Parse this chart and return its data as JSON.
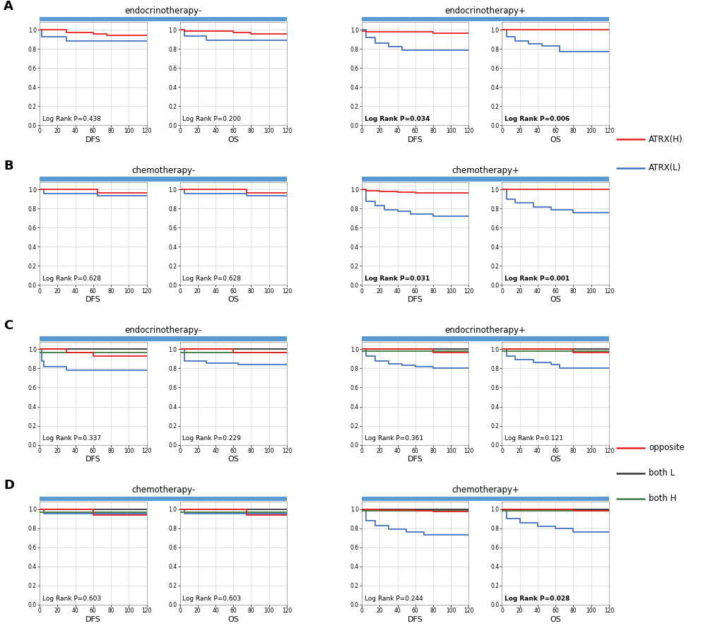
{
  "panels": {
    "A": {
      "left_title": "endocrinotherapy-",
      "right_title": "endocrinotherapy+",
      "legend_type": "AB",
      "plots": [
        {
          "label": "DFS",
          "p_value": "0.438",
          "bold": false,
          "red": {
            "x": [
              0,
              30,
              30,
              60,
              60,
              75,
              75,
              100,
              100,
              120
            ],
            "y": [
              1.0,
              1.0,
              0.97,
              0.97,
              0.955,
              0.955,
              0.94,
              0.94,
              0.94,
              0.94
            ]
          },
          "blue": {
            "x": [
              0,
              2,
              2,
              30,
              30,
              120
            ],
            "y": [
              1.0,
              1.0,
              0.93,
              0.93,
              0.885,
              0.885
            ]
          }
        },
        {
          "label": "OS",
          "p_value": "0.200",
          "bold": false,
          "red": {
            "x": [
              0,
              5,
              5,
              60,
              60,
              80,
              80,
              100,
              120
            ],
            "y": [
              1.0,
              1.0,
              0.985,
              0.985,
              0.97,
              0.97,
              0.96,
              0.96,
              0.96
            ]
          },
          "blue": {
            "x": [
              0,
              5,
              5,
              30,
              30,
              120
            ],
            "y": [
              1.0,
              1.0,
              0.935,
              0.935,
              0.89,
              0.89
            ]
          }
        },
        {
          "label": "DFS",
          "p_value": "0.034",
          "bold": true,
          "red": {
            "x": [
              0,
              5,
              5,
              80,
              80,
              100,
              120
            ],
            "y": [
              0.985,
              0.985,
              0.98,
              0.98,
              0.965,
              0.965,
              0.965
            ]
          },
          "blue": {
            "x": [
              0,
              5,
              5,
              15,
              15,
              30,
              30,
              45,
              45,
              60,
              60,
              80,
              80,
              100,
              120
            ],
            "y": [
              1.0,
              1.0,
              0.92,
              0.92,
              0.86,
              0.86,
              0.82,
              0.82,
              0.79,
              0.79,
              0.79,
              0.79,
              0.79,
              0.79,
              0.79
            ]
          }
        },
        {
          "label": "OS",
          "p_value": "0.006",
          "bold": true,
          "red": {
            "x": [
              0,
              100,
              120
            ],
            "y": [
              1.0,
              1.0,
              1.0
            ]
          },
          "blue": {
            "x": [
              0,
              5,
              5,
              15,
              15,
              30,
              30,
              45,
              45,
              65,
              65,
              100,
              120
            ],
            "y": [
              1.0,
              1.0,
              0.93,
              0.93,
              0.88,
              0.88,
              0.855,
              0.855,
              0.83,
              0.83,
              0.775,
              0.775,
              0.775
            ]
          }
        }
      ]
    },
    "B": {
      "left_title": "chemotherapy-",
      "right_title": "chemotherapy+",
      "legend_type": "AB",
      "plots": [
        {
          "label": "DFS",
          "p_value": "0.628",
          "bold": false,
          "red": {
            "x": [
              0,
              65,
              65,
              100,
              120
            ],
            "y": [
              1.0,
              1.0,
              0.965,
              0.965,
              0.965
            ]
          },
          "blue": {
            "x": [
              0,
              5,
              5,
              65,
              65,
              100,
              120
            ],
            "y": [
              1.0,
              1.0,
              0.96,
              0.96,
              0.935,
              0.935,
              0.935
            ]
          }
        },
        {
          "label": "OS",
          "p_value": "0.628",
          "bold": false,
          "red": {
            "x": [
              0,
              75,
              75,
              100,
              120
            ],
            "y": [
              1.0,
              1.0,
              0.965,
              0.965,
              0.965
            ]
          },
          "blue": {
            "x": [
              0,
              5,
              5,
              75,
              75,
              100,
              120
            ],
            "y": [
              1.0,
              1.0,
              0.96,
              0.96,
              0.935,
              0.935,
              0.935
            ]
          }
        },
        {
          "label": "DFS",
          "p_value": "0.031",
          "bold": true,
          "red": {
            "x": [
              0,
              5,
              5,
              20,
              20,
              40,
              40,
              60,
              60,
              100,
              120
            ],
            "y": [
              1.0,
              1.0,
              0.99,
              0.99,
              0.98,
              0.98,
              0.975,
              0.975,
              0.965,
              0.965,
              0.965
            ]
          },
          "blue": {
            "x": [
              0,
              5,
              5,
              15,
              15,
              25,
              25,
              40,
              40,
              55,
              55,
              80,
              80,
              100,
              120
            ],
            "y": [
              1.0,
              1.0,
              0.88,
              0.88,
              0.83,
              0.83,
              0.79,
              0.79,
              0.77,
              0.77,
              0.74,
              0.74,
              0.72,
              0.72,
              0.72
            ]
          }
        },
        {
          "label": "OS",
          "p_value": "0.001",
          "bold": true,
          "red": {
            "x": [
              0,
              100,
              120
            ],
            "y": [
              1.0,
              1.0,
              1.0
            ]
          },
          "blue": {
            "x": [
              0,
              5,
              5,
              15,
              15,
              35,
              35,
              55,
              55,
              80,
              80,
              100,
              120
            ],
            "y": [
              1.0,
              1.0,
              0.9,
              0.9,
              0.86,
              0.86,
              0.82,
              0.82,
              0.79,
              0.79,
              0.76,
              0.76,
              0.76
            ]
          }
        }
      ]
    },
    "C": {
      "left_title": "endocrinotherapy-",
      "right_title": "endocrinotherapy+",
      "legend_type": "CD",
      "plots": [
        {
          "label": "DFS",
          "p_value": "0.337",
          "bold": false,
          "red": {
            "x": [
              0,
              30,
              30,
              60,
              60,
              100,
              120
            ],
            "y": [
              1.0,
              1.0,
              0.97,
              0.97,
              0.93,
              0.93,
              0.93
            ]
          },
          "dark": {
            "x": [
              0,
              120
            ],
            "y": [
              1.0,
              1.0
            ]
          },
          "green": {
            "x": [
              0,
              120
            ],
            "y": [
              0.97,
              0.97
            ]
          },
          "blue": {
            "x": [
              0,
              2,
              2,
              5,
              5,
              30,
              30,
              100,
              120
            ],
            "y": [
              1.0,
              1.0,
              0.88,
              0.88,
              0.82,
              0.82,
              0.78,
              0.78,
              0.78
            ]
          }
        },
        {
          "label": "OS",
          "p_value": "0.229",
          "bold": false,
          "red": {
            "x": [
              0,
              60,
              60,
              100,
              120
            ],
            "y": [
              1.0,
              1.0,
              0.97,
              0.97,
              0.97
            ]
          },
          "dark": {
            "x": [
              0,
              120
            ],
            "y": [
              1.0,
              1.0
            ]
          },
          "green": {
            "x": [
              0,
              120
            ],
            "y": [
              0.97,
              0.97
            ]
          },
          "blue": {
            "x": [
              0,
              5,
              5,
              30,
              30,
              65,
              65,
              100,
              120
            ],
            "y": [
              1.0,
              1.0,
              0.88,
              0.88,
              0.855,
              0.855,
              0.84,
              0.84,
              0.84
            ]
          }
        },
        {
          "label": "DFS",
          "p_value": "0.361",
          "bold": false,
          "red": {
            "x": [
              0,
              80,
              80,
              100,
              120
            ],
            "y": [
              1.0,
              1.0,
              0.97,
              0.97,
              0.97
            ]
          },
          "dark": {
            "x": [
              0,
              120
            ],
            "y": [
              1.0,
              1.0
            ]
          },
          "green": {
            "x": [
              0,
              120
            ],
            "y": [
              0.98,
              0.98
            ]
          },
          "blue": {
            "x": [
              0,
              5,
              5,
              15,
              15,
              30,
              30,
              45,
              45,
              60,
              60,
              80,
              80,
              100,
              120
            ],
            "y": [
              1.0,
              1.0,
              0.93,
              0.93,
              0.88,
              0.88,
              0.85,
              0.85,
              0.83,
              0.83,
              0.82,
              0.82,
              0.8,
              0.8,
              0.8
            ]
          }
        },
        {
          "label": "OS",
          "p_value": "0.121",
          "bold": false,
          "red": {
            "x": [
              0,
              80,
              80,
              100,
              120
            ],
            "y": [
              1.0,
              1.0,
              0.97,
              0.97,
              0.97
            ]
          },
          "dark": {
            "x": [
              0,
              120
            ],
            "y": [
              1.0,
              1.0
            ]
          },
          "green": {
            "x": [
              0,
              120
            ],
            "y": [
              0.98,
              0.98
            ]
          },
          "blue": {
            "x": [
              0,
              5,
              5,
              15,
              15,
              35,
              35,
              55,
              55,
              65,
              65,
              100,
              120
            ],
            "y": [
              1.0,
              1.0,
              0.93,
              0.93,
              0.89,
              0.89,
              0.86,
              0.86,
              0.84,
              0.84,
              0.8,
              0.8,
              0.8
            ]
          }
        }
      ]
    },
    "D": {
      "left_title": "chemotherapy-",
      "right_title": "chemotherapy+",
      "legend_type": "CD",
      "plots": [
        {
          "label": "DFS",
          "p_value": "0.603",
          "bold": false,
          "red": {
            "x": [
              0,
              60,
              60,
              100,
              120
            ],
            "y": [
              1.0,
              1.0,
              0.935,
              0.935,
              0.935
            ]
          },
          "dark": {
            "x": [
              0,
              120
            ],
            "y": [
              1.0,
              1.0
            ]
          },
          "green": {
            "x": [
              0,
              120
            ],
            "y": [
              0.97,
              0.97
            ]
          },
          "blue": {
            "x": [
              0,
              5,
              5,
              100,
              120
            ],
            "y": [
              1.0,
              1.0,
              0.95,
              0.95,
              0.95
            ]
          }
        },
        {
          "label": "OS",
          "p_value": "0.603",
          "bold": false,
          "red": {
            "x": [
              0,
              75,
              75,
              100,
              120
            ],
            "y": [
              1.0,
              1.0,
              0.935,
              0.935,
              0.935
            ]
          },
          "dark": {
            "x": [
              0,
              120
            ],
            "y": [
              1.0,
              1.0
            ]
          },
          "green": {
            "x": [
              0,
              120
            ],
            "y": [
              0.97,
              0.97
            ]
          },
          "blue": {
            "x": [
              0,
              5,
              5,
              100,
              120
            ],
            "y": [
              1.0,
              1.0,
              0.95,
              0.95,
              0.95
            ]
          }
        },
        {
          "label": "DFS",
          "p_value": "0.244",
          "bold": false,
          "red": {
            "x": [
              0,
              5,
              5,
              20,
              20,
              60,
              60,
              80,
              80,
              100,
              120
            ],
            "y": [
              1.0,
              1.0,
              0.995,
              0.995,
              0.99,
              0.99,
              0.985,
              0.985,
              0.975,
              0.975,
              0.975
            ]
          },
          "dark": {
            "x": [
              0,
              120
            ],
            "y": [
              1.0,
              1.0
            ]
          },
          "green": {
            "x": [
              0,
              120
            ],
            "y": [
              0.98,
              0.98
            ]
          },
          "blue": {
            "x": [
              0,
              5,
              5,
              15,
              15,
              30,
              30,
              50,
              50,
              70,
              70,
              100,
              120
            ],
            "y": [
              1.0,
              1.0,
              0.88,
              0.88,
              0.83,
              0.83,
              0.79,
              0.79,
              0.76,
              0.76,
              0.73,
              0.73,
              0.73
            ]
          }
        },
        {
          "label": "OS",
          "p_value": "0.028",
          "bold": true,
          "red": {
            "x": [
              0,
              5,
              5,
              80,
              80,
              100,
              120
            ],
            "y": [
              1.0,
              1.0,
              0.995,
              0.995,
              0.985,
              0.985,
              0.985
            ]
          },
          "dark": {
            "x": [
              0,
              120
            ],
            "y": [
              1.0,
              1.0
            ]
          },
          "green": {
            "x": [
              0,
              120
            ],
            "y": [
              0.98,
              0.98
            ]
          },
          "blue": {
            "x": [
              0,
              5,
              5,
              20,
              20,
              40,
              40,
              60,
              60,
              80,
              80,
              100,
              120
            ],
            "y": [
              1.0,
              1.0,
              0.9,
              0.9,
              0.86,
              0.86,
              0.82,
              0.82,
              0.8,
              0.8,
              0.76,
              0.76,
              0.76
            ]
          }
        }
      ]
    }
  },
  "red_color": "#e82020",
  "blue_color": "#4472c4",
  "green_color": "#3a7a3a",
  "dark_color": "#333333",
  "header_bar_color": "#5b9bd5",
  "background_color": "#ffffff",
  "grid_color": "#c8c8c8",
  "section_labels": [
    "A",
    "B",
    "C",
    "D"
  ],
  "legends": {
    "AB": [
      {
        "color": "#e82020",
        "label": "ATRX(H)"
      },
      {
        "color": "#4472c4",
        "label": "ATRX(L)"
      }
    ],
    "CD": [
      {
        "color": "#e82020",
        "label": "opposite"
      },
      {
        "color": "#333333",
        "label": "both L"
      },
      {
        "color": "#3a7a3a",
        "label": "both H"
      }
    ]
  }
}
